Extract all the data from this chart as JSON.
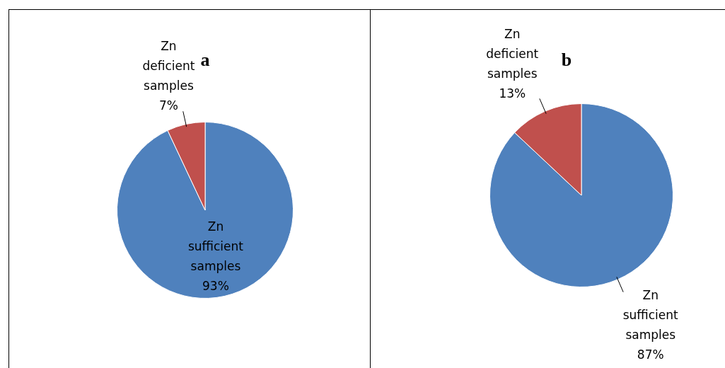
{
  "chart_data": [
    {
      "type": "pie",
      "title": "a",
      "categories": [
        "Zn sufficient samples",
        "Zn deficient samples"
      ],
      "values": [
        93,
        7
      ],
      "colors": [
        "#4f81bd",
        "#c0504d"
      ],
      "value_labels": [
        "93%",
        "7%"
      ],
      "legend": false
    },
    {
      "type": "pie",
      "title": "b",
      "categories": [
        "Zn sufficient samples",
        "Zn deficient samples"
      ],
      "values": [
        87,
        13
      ],
      "colors": [
        "#4f81bd",
        "#c0504d"
      ],
      "value_labels": [
        "87%",
        "13%"
      ],
      "legend": false
    }
  ]
}
